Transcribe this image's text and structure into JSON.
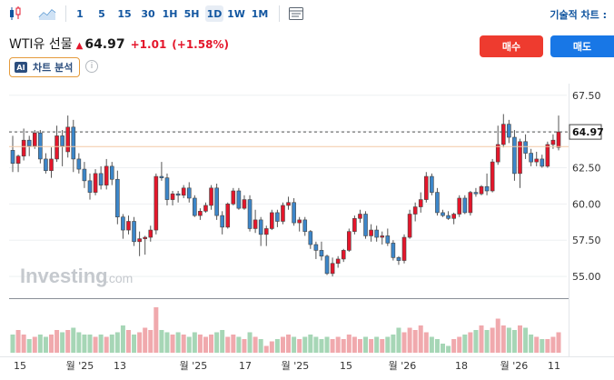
{
  "toolbar": {
    "timeframes": [
      "1",
      "5",
      "15",
      "30",
      "1H",
      "5H",
      "1D",
      "1W",
      "1M"
    ],
    "active": "1D",
    "icons": [
      "candlestick-icon",
      "area-chart-icon",
      "indicators-icon"
    ],
    "right_label": "기술적 차트 :"
  },
  "instrument": {
    "name": "WTI유 선물",
    "price": "64.97",
    "change": "+1.01",
    "change_pct": "(+1.58%)",
    "direction_arrow": "▲",
    "buy_label": "매수",
    "sell_label": "매도"
  },
  "ai": {
    "badge": "AI",
    "label": "차트 분석",
    "info": "i"
  },
  "watermark": {
    "main": "Investing",
    "suffix": ".com"
  },
  "chart_data": {
    "type": "candlestick",
    "price_axis": {
      "ticks": [
        67.5,
        65.0,
        62.5,
        60.0,
        57.5,
        55.0
      ],
      "labels": [
        "67.50",
        "62.50",
        "60.00",
        "57.50",
        "55.00"
      ],
      "range": [
        53.5,
        68.3
      ]
    },
    "current_price": {
      "value": 64.97,
      "label": "64.97"
    },
    "reference_line": 63.96,
    "x_labels": [
      "15",
      "월 '25",
      "13",
      "월 '25",
      "17",
      "월 '25",
      "15",
      "월 '26",
      "18",
      "월 '26",
      "11"
    ],
    "colors": {
      "up": "#e4162b",
      "down": "#3c86c9",
      "up_volume": "#f0a9ad",
      "down_volume": "#a6d6b6"
    },
    "candles": [
      [
        63.7,
        64.7,
        62.2,
        62.8
      ],
      [
        62.8,
        63.4,
        62.2,
        63.3
      ],
      [
        63.3,
        65.2,
        63.0,
        64.4
      ],
      [
        64.4,
        64.7,
        63.3,
        64.0
      ],
      [
        64.0,
        65.1,
        63.8,
        64.9
      ],
      [
        64.9,
        65.1,
        62.8,
        63.1
      ],
      [
        63.1,
        63.5,
        62.1,
        62.3
      ],
      [
        62.3,
        63.9,
        61.8,
        63.1
      ],
      [
        63.1,
        65.4,
        62.9,
        64.7
      ],
      [
        64.7,
        65.1,
        62.6,
        64.0
      ],
      [
        63.6,
        66.1,
        63.2,
        65.3
      ],
      [
        65.3,
        65.8,
        62.2,
        63.1
      ],
      [
        63.1,
        63.5,
        62.1,
        62.4
      ],
      [
        62.4,
        62.9,
        61.1,
        61.6
      ],
      [
        61.6,
        62.1,
        60.3,
        60.8
      ],
      [
        60.8,
        62.4,
        60.6,
        62.1
      ],
      [
        62.1,
        62.6,
        61.0,
        61.3
      ],
      [
        61.3,
        63.1,
        61.0,
        62.6
      ],
      [
        62.6,
        62.9,
        61.3,
        61.7
      ],
      [
        61.7,
        62.3,
        58.6,
        59.1
      ],
      [
        59.1,
        59.3,
        57.6,
        58.2
      ],
      [
        58.2,
        59.2,
        57.9,
        58.8
      ],
      [
        58.8,
        59.1,
        57.1,
        57.4
      ],
      [
        57.4,
        58.1,
        56.4,
        57.6
      ],
      [
        57.6,
        57.8,
        56.5,
        57.7
      ],
      [
        57.7,
        58.5,
        57.4,
        58.2
      ],
      [
        58.2,
        62.1,
        57.9,
        61.9
      ],
      [
        61.9,
        62.9,
        61.6,
        61.8
      ],
      [
        61.8,
        62.1,
        59.9,
        60.3
      ],
      [
        60.3,
        60.9,
        59.9,
        60.7
      ],
      [
        60.7,
        60.9,
        60.1,
        60.6
      ],
      [
        60.6,
        61.3,
        60.4,
        61.1
      ],
      [
        61.1,
        61.5,
        60.1,
        60.4
      ],
      [
        60.4,
        60.6,
        59.1,
        59.2
      ],
      [
        59.2,
        59.7,
        58.9,
        59.5
      ],
      [
        59.5,
        60.1,
        59.4,
        59.9
      ],
      [
        59.9,
        61.3,
        59.6,
        61.1
      ],
      [
        61.1,
        61.4,
        58.9,
        59.2
      ],
      [
        59.2,
        59.5,
        57.9,
        58.4
      ],
      [
        58.4,
        60.1,
        58.3,
        60.0
      ],
      [
        60.0,
        61.1,
        59.9,
        60.9
      ],
      [
        60.9,
        61.1,
        59.6,
        59.7
      ],
      [
        59.7,
        60.6,
        59.6,
        60.3
      ],
      [
        60.3,
        60.6,
        58.1,
        58.3
      ],
      [
        58.3,
        59.6,
        58.0,
        58.9
      ],
      [
        58.9,
        59.1,
        57.1,
        57.9
      ],
      [
        57.9,
        58.5,
        57.1,
        58.3
      ],
      [
        58.3,
        59.6,
        58.2,
        59.4
      ],
      [
        59.4,
        59.6,
        58.4,
        58.8
      ],
      [
        58.8,
        60.1,
        58.6,
        59.9
      ],
      [
        59.9,
        60.5,
        59.6,
        60.1
      ],
      [
        60.1,
        60.4,
        58.5,
        58.7
      ],
      [
        58.7,
        59.1,
        58.1,
        58.9
      ],
      [
        58.9,
        59.1,
        57.8,
        58.1
      ],
      [
        58.1,
        58.2,
        56.9,
        57.2
      ],
      [
        57.2,
        57.4,
        56.2,
        56.8
      ],
      [
        56.8,
        57.4,
        56.1,
        56.4
      ],
      [
        56.4,
        56.5,
        55.1,
        55.2
      ],
      [
        55.2,
        56.3,
        55.0,
        55.9
      ],
      [
        55.9,
        56.4,
        55.6,
        56.2
      ],
      [
        56.2,
        56.9,
        56.0,
        56.8
      ],
      [
        56.8,
        58.3,
        56.7,
        58.1
      ],
      [
        58.1,
        59.2,
        57.9,
        59.0
      ],
      [
        59.0,
        59.6,
        58.7,
        59.3
      ],
      [
        59.3,
        59.5,
        57.6,
        57.8
      ],
      [
        57.8,
        58.6,
        57.4,
        58.2
      ],
      [
        58.2,
        58.5,
        57.4,
        57.7
      ],
      [
        57.7,
        58.1,
        57.2,
        57.8
      ],
      [
        57.8,
        58.3,
        57.1,
        57.3
      ],
      [
        57.3,
        57.5,
        56.1,
        56.3
      ],
      [
        56.3,
        56.4,
        55.8,
        56.1
      ],
      [
        56.1,
        57.9,
        55.9,
        57.7
      ],
      [
        57.7,
        59.6,
        57.6,
        59.3
      ],
      [
        59.3,
        60.1,
        58.8,
        59.8
      ],
      [
        59.8,
        60.8,
        59.4,
        60.3
      ],
      [
        60.3,
        62.2,
        60.1,
        61.9
      ],
      [
        61.9,
        62.1,
        60.6,
        60.8
      ],
      [
        60.8,
        61.1,
        59.2,
        59.4
      ],
      [
        59.4,
        59.6,
        59.1,
        59.2
      ],
      [
        59.2,
        59.5,
        58.9,
        59.0
      ],
      [
        59.0,
        59.4,
        58.6,
        59.3
      ],
      [
        59.3,
        60.6,
        59.1,
        60.4
      ],
      [
        60.4,
        60.6,
        59.3,
        59.4
      ],
      [
        59.4,
        60.9,
        59.2,
        60.8
      ],
      [
        60.8,
        61.1,
        60.5,
        60.7
      ],
      [
        60.7,
        61.3,
        60.6,
        61.2
      ],
      [
        61.2,
        62.1,
        60.6,
        60.9
      ],
      [
        60.9,
        63.1,
        60.8,
        62.9
      ],
      [
        62.9,
        65.4,
        62.7,
        64.1
      ],
      [
        64.1,
        66.2,
        63.9,
        65.5
      ],
      [
        65.5,
        65.8,
        64.2,
        64.6
      ],
      [
        64.6,
        65.1,
        61.6,
        62.1
      ],
      [
        62.1,
        64.5,
        61.1,
        64.3
      ],
      [
        64.3,
        64.8,
        63.1,
        63.5
      ],
      [
        63.5,
        63.8,
        62.6,
        62.9
      ],
      [
        62.9,
        63.6,
        62.6,
        63.1
      ],
      [
        63.1,
        63.4,
        62.5,
        62.6
      ],
      [
        62.6,
        64.3,
        62.5,
        64.1
      ],
      [
        64.1,
        64.8,
        63.8,
        64.4
      ],
      [
        63.9,
        66.1,
        63.7,
        64.97
      ]
    ],
    "volumes": [
      0.4,
      0.5,
      0.4,
      0.3,
      0.35,
      0.4,
      0.35,
      0.4,
      0.5,
      0.45,
      0.5,
      0.55,
      0.45,
      0.4,
      0.4,
      0.35,
      0.4,
      0.35,
      0.4,
      0.45,
      0.6,
      0.5,
      0.4,
      0.45,
      0.55,
      0.5,
      1.0,
      0.5,
      0.45,
      0.4,
      0.45,
      0.4,
      0.35,
      0.45,
      0.4,
      0.35,
      0.4,
      0.45,
      0.5,
      0.35,
      0.4,
      0.35,
      0.3,
      0.45,
      0.35,
      0.3,
      0.15,
      0.25,
      0.3,
      0.35,
      0.4,
      0.35,
      0.3,
      0.35,
      0.4,
      0.35,
      0.3,
      0.35,
      0.3,
      0.35,
      0.3,
      0.4,
      0.35,
      0.3,
      0.35,
      0.3,
      0.35,
      0.3,
      0.35,
      0.4,
      0.55,
      0.45,
      0.55,
      0.5,
      0.6,
      0.45,
      0.35,
      0.3,
      0.2,
      0.15,
      0.3,
      0.35,
      0.4,
      0.45,
      0.5,
      0.6,
      0.5,
      0.55,
      0.75,
      0.6,
      0.55,
      0.5,
      0.6,
      0.55,
      0.4,
      0.35,
      0.3,
      0.3,
      0.35,
      0.45
    ]
  }
}
